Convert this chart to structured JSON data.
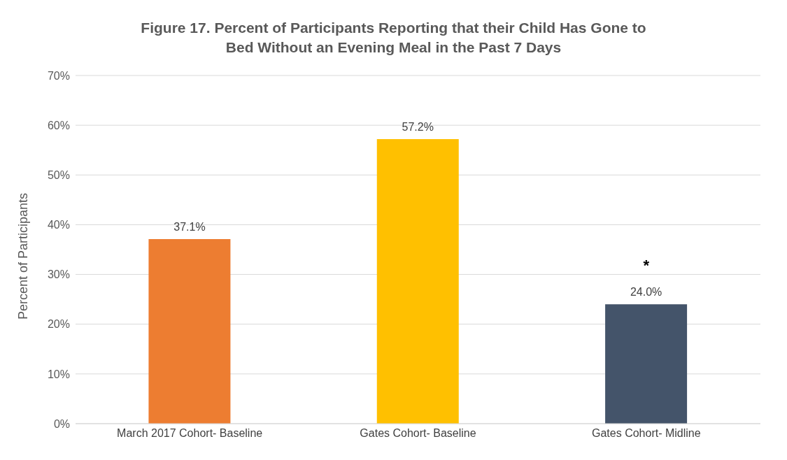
{
  "chart_data": {
    "type": "bar",
    "title": "Figure 17. Percent of Participants Reporting that their Child Has Gone to Bed Without an Evening Meal in the Past 7 Days",
    "ylabel": "Percent of Participants",
    "categories": [
      "March 2017 Cohort- Baseline",
      "Gates Cohort- Baseline",
      "Gates Cohort- Midline"
    ],
    "values": [
      37.1,
      57.2,
      24.0
    ],
    "colors": [
      "#ed7d31",
      "#ffc000",
      "#44546a"
    ],
    "value_labels": [
      "37.1%",
      "57.2%",
      "24.0%"
    ],
    "annotations": [
      {
        "text": "*",
        "x": "Gates Cohort- Midline",
        "y": 24.0
      }
    ],
    "ylim": [
      0,
      70
    ],
    "yticks": [
      {
        "value": 0,
        "label": "0%"
      },
      {
        "value": 10,
        "label": "10%"
      },
      {
        "value": 20,
        "label": "20%"
      },
      {
        "value": 30,
        "label": "30%"
      },
      {
        "value": 40,
        "label": "40%"
      },
      {
        "value": 50,
        "label": "50%"
      },
      {
        "value": 60,
        "label": "60%"
      },
      {
        "value": 70,
        "label": "70%"
      }
    ],
    "grid": "y",
    "legend": false
  }
}
